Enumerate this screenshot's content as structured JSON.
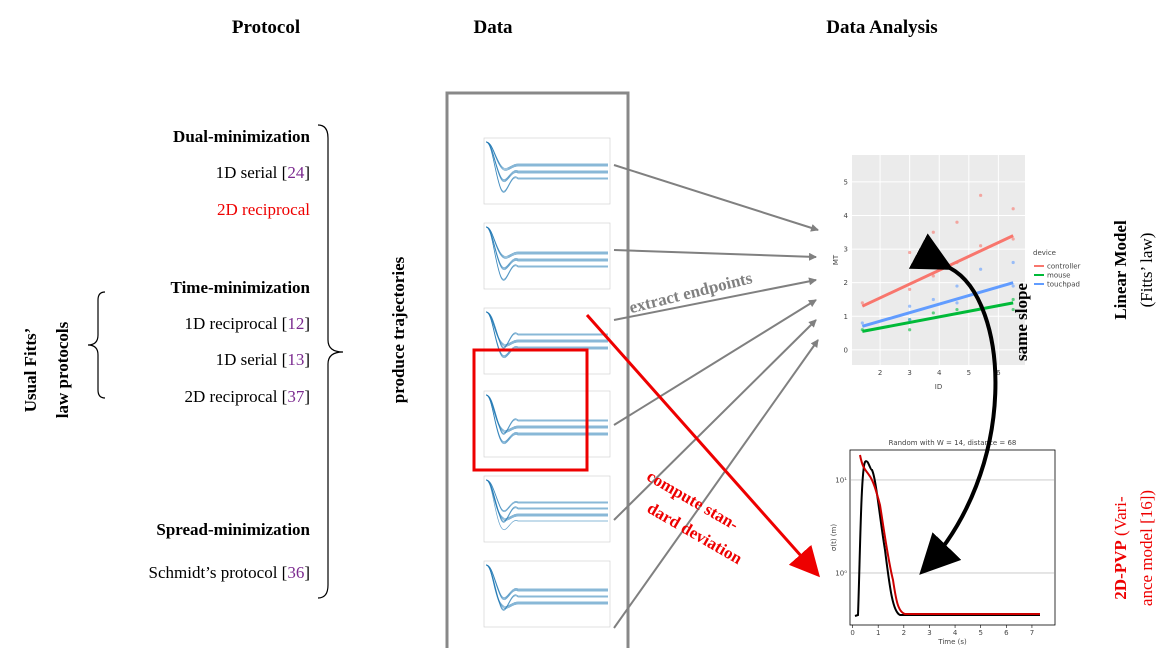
{
  "headers": [
    "Protocol",
    "Data",
    "Data Analysis"
  ],
  "side_label": [
    "Usual Fitts’",
    "law protocols"
  ],
  "groups": [
    {
      "title": "Dual-minimization",
      "items": [
        {
          "pre": "1D serial [",
          "ref": "24",
          "post": "]"
        },
        {
          "pre": "2D reciprocal"
        }
      ]
    },
    {
      "title": "Time-minimization",
      "items": [
        {
          "pre": "1D reciprocal [",
          "ref": "12",
          "post": "]"
        },
        {
          "pre": "1D serial [",
          "ref": "13",
          "post": "]"
        },
        {
          "pre": "2D reciprocal [",
          "ref": "37",
          "post": "]"
        }
      ]
    },
    {
      "title": "Spread-minimization",
      "items": [
        {
          "pre": "Schmidt’s protocol [",
          "ref": "36",
          "post": "]"
        }
      ]
    }
  ],
  "produce": "produce trajectories",
  "extract": "extract endpoints",
  "compute": [
    "compute stan-",
    "dard deviation"
  ],
  "same_slope": "same slope",
  "linear_model": {
    "title": "Linear Model",
    "subtitle": "(Fitts’ law)"
  },
  "pvp": {
    "title": "2D-PVP",
    "line1": " (Vari-",
    "line2_pre": "ance model [",
    "ref": "16",
    "line2_post": "])"
  },
  "chart_data": [
    {
      "type": "scatter",
      "xlabel": "ID",
      "ylabel": "MT",
      "xlim": [
        1.05,
        6.9
      ],
      "ylim": [
        -0.45,
        5.8
      ],
      "xticks": [
        2,
        3,
        4,
        5,
        6
      ],
      "yticks": [
        0,
        1,
        2,
        3,
        4,
        5
      ],
      "legend_title": "device",
      "fit_x": [
        1.4,
        6.5
      ],
      "series": [
        {
          "name": "controller",
          "color": "#f8766d",
          "x": [
            1.4,
            3,
            3,
            3.8,
            3.8,
            4.6,
            4.6,
            5.4,
            5.4,
            6.5,
            6.5
          ],
          "y": [
            1.4,
            2.9,
            1.8,
            3.5,
            2.2,
            3.8,
            2.6,
            4.6,
            3.1,
            4.2,
            3.3
          ],
          "fit": [
            1.3,
            3.4
          ]
        },
        {
          "name": "mouse",
          "color": "#00ba38",
          "x": [
            1.4,
            3,
            3,
            3.8,
            4.6,
            5.4,
            6.5,
            6.5
          ],
          "y": [
            0.6,
            0.9,
            0.6,
            1.1,
            1.2,
            1.3,
            1.5,
            1.2
          ],
          "fit": [
            0.55,
            1.4
          ]
        },
        {
          "name": "touchpad",
          "color": "#619cff",
          "x": [
            1.4,
            3,
            3,
            3.8,
            4.6,
            4.6,
            5.4,
            6.5,
            6.5
          ],
          "y": [
            0.8,
            1.3,
            0.9,
            1.5,
            1.9,
            1.4,
            2.4,
            2.6,
            1.9
          ],
          "fit": [
            0.7,
            2.0
          ]
        }
      ]
    },
    {
      "type": "line",
      "title": "Random with W = 14, distance = 68",
      "xlabel": "Time (s)",
      "ylabel": "σ(t) (m)",
      "xlim": [
        -0.1,
        7.9
      ],
      "ylim": [
        0.276,
        21
      ],
      "log_y": true,
      "xticks": [
        0,
        1,
        2,
        3,
        4,
        5,
        6,
        7
      ],
      "yticks": [
        {
          "value": 1,
          "label": "10⁰"
        },
        {
          "value": 10,
          "label": "10¹"
        }
      ]
    }
  ]
}
